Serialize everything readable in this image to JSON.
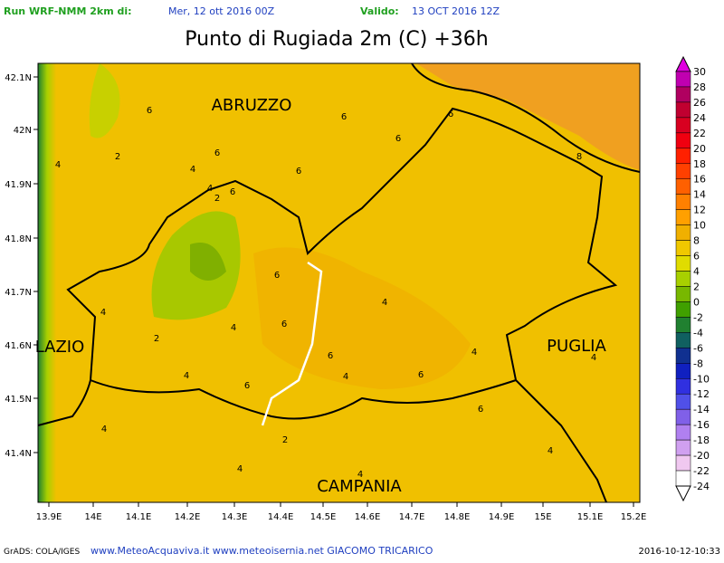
{
  "header": {
    "run_label": "Run WRF-NMM 2km di:",
    "run_date": "Mer, 12 ott 2016 00Z",
    "valid_label": "Valido:",
    "valid_date": "13 OCT 2016 12Z"
  },
  "title": "Punto di Rugiada 2m (C) +36h",
  "map": {
    "lon_ticks": [
      "13.9E",
      "14E",
      "14.1E",
      "14.2E",
      "14.3E",
      "14.4E",
      "14.5E",
      "14.6E",
      "14.7E",
      "14.8E",
      "14.9E",
      "15E",
      "15.1E",
      "15.2E"
    ],
    "lat_ticks": [
      "42.1N",
      "42N",
      "41.9N",
      "41.8N",
      "41.7N",
      "41.6N",
      "41.5N",
      "41.4N"
    ],
    "region_labels": [
      "ABRUZZO",
      "LAZIO",
      "PUGLIA",
      "CAMPANIA"
    ],
    "contour_labels": [
      "6",
      "6",
      "6",
      "6",
      "2",
      "4",
      "6",
      "6",
      "4",
      "4",
      "6",
      "2",
      "8",
      "6",
      "4",
      "4",
      "6",
      "2",
      "4",
      "6",
      "4",
      "4",
      "6",
      "4",
      "6",
      "4",
      "6",
      "4",
      "2",
      "4",
      "4",
      "4"
    ]
  },
  "colorbar": {
    "labels": [
      "30",
      "28",
      "26",
      "24",
      "22",
      "20",
      "18",
      "16",
      "14",
      "12",
      "10",
      "8",
      "6",
      "4",
      "2",
      "0",
      "-2",
      "-4",
      "-6",
      "-8",
      "-10",
      "-12",
      "-14",
      "-16",
      "-18",
      "-20",
      "-22",
      "-24"
    ],
    "colors": [
      "#e000e0",
      "#c000b0",
      "#b00060",
      "#c00030",
      "#d80020",
      "#f00010",
      "#ff2000",
      "#ff4000",
      "#ff6000",
      "#ff8000",
      "#ffa000",
      "#f0b000",
      "#f0c800",
      "#e0dc00",
      "#a8d000",
      "#78b800",
      "#40a000",
      "#208030",
      "#106060",
      "#103090",
      "#1020c0",
      "#3030e0",
      "#5050e8",
      "#8060e8",
      "#b080f0",
      "#d0a0f0",
      "#f0c8f0",
      "#ffffff"
    ]
  },
  "footer": {
    "left": "GrADS: COLA/IGES",
    "center": "www.MeteoAcquaviva.it www.meteoisernia.net GIACOMO TRICARICO",
    "right": "2016-10-12-10:33"
  }
}
